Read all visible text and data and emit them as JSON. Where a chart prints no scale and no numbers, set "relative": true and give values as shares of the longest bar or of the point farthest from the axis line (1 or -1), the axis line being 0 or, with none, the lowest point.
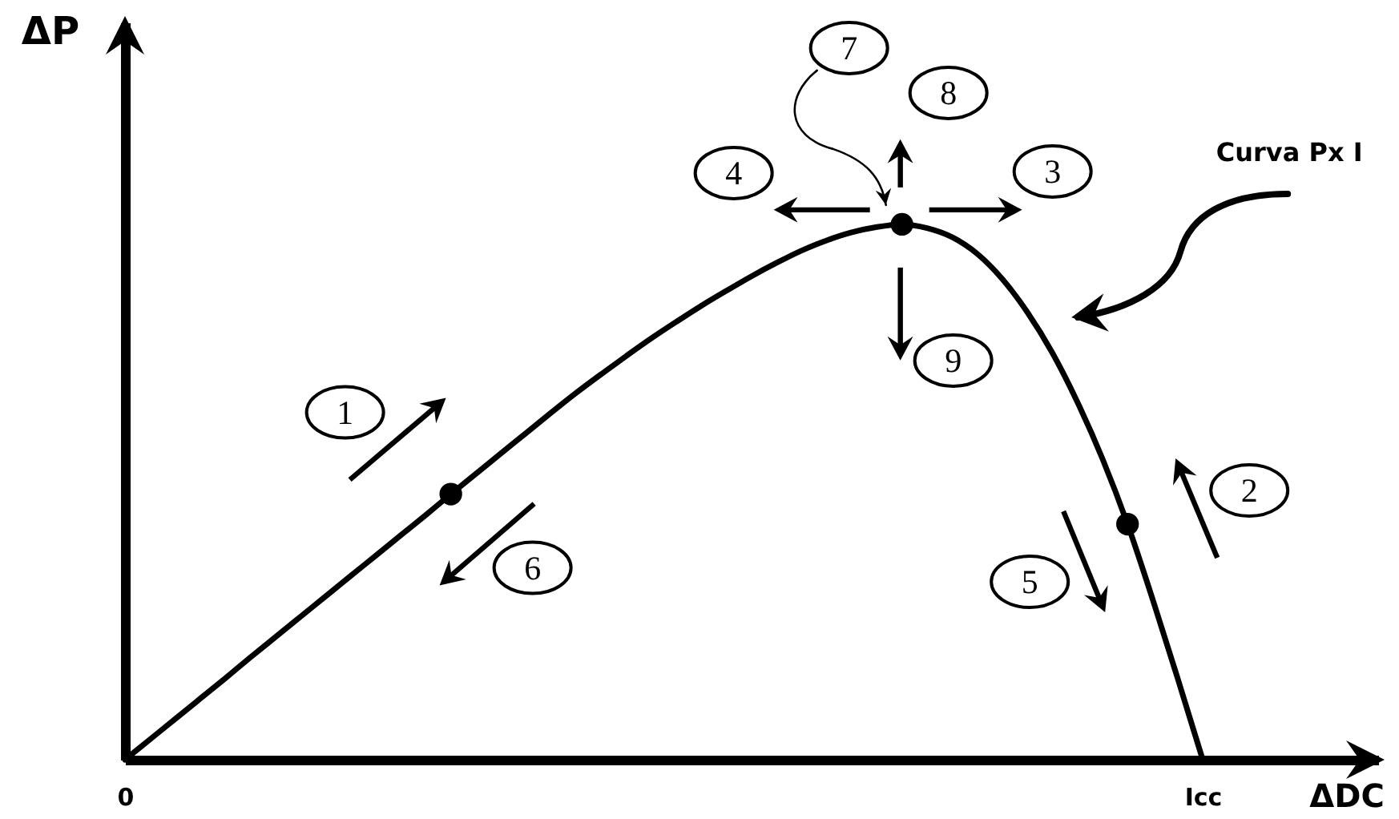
{
  "chart_data": {
    "type": "line",
    "relative": true,
    "xlabel": "ΔDC",
    "ylabel": "ΔP",
    "categories": [
      "0",
      null,
      null,
      null,
      null,
      null,
      null,
      null,
      null,
      null,
      null,
      null,
      null,
      null,
      null,
      null,
      null,
      null,
      null,
      null,
      null,
      null,
      null,
      null,
      null,
      null,
      null,
      null,
      null,
      null,
      null,
      null,
      null,
      null,
      null,
      null,
      null,
      null,
      null,
      null,
      null,
      null,
      null,
      "Icc",
      null,
      null,
      null,
      null,
      null,
      null,
      null
    ],
    "series": [
      {
        "color": "#000000",
        "values": [
          0,
          0.038,
          0.076,
          0.114,
          0.152,
          0.191,
          0.229,
          0.267,
          0.305,
          0.343,
          0.381,
          0.419,
          0.457,
          0.496,
          0.534,
          0.572,
          0.61,
          0.648,
          0.685,
          0.72,
          0.754,
          0.787,
          0.818,
          0.848,
          0.876,
          0.903,
          0.928,
          0.951,
          0.97,
          0.985,
          0.995,
          1,
          0.993,
          0.976,
          0.945,
          0.898,
          0.836,
          0.76,
          0.668,
          0.562,
          0.44,
          0.3,
          0.152,
          0,
          null,
          null,
          null,
          null,
          null,
          null,
          null
        ]
      },
      {
        "type": "scatter",
        "color": "#000000",
        "marker": "circle",
        "values": [
          null,
          null,
          null,
          null,
          null,
          null,
          null,
          null,
          null,
          null,
          null,
          null,
          null,
          0.496,
          null,
          null,
          null,
          null,
          null,
          null,
          null,
          null,
          null,
          null,
          null,
          null,
          null,
          null,
          null,
          null,
          null,
          1,
          null,
          null,
          null,
          null,
          null,
          null,
          null,
          null,
          0.44,
          null,
          null,
          null,
          null,
          null,
          null,
          null,
          null,
          null,
          null
        ]
      }
    ],
    "annotations": [
      "1",
      "2",
      "3",
      "4",
      "5",
      "6",
      "7",
      "8",
      "9",
      "Curva Px I"
    ]
  }
}
